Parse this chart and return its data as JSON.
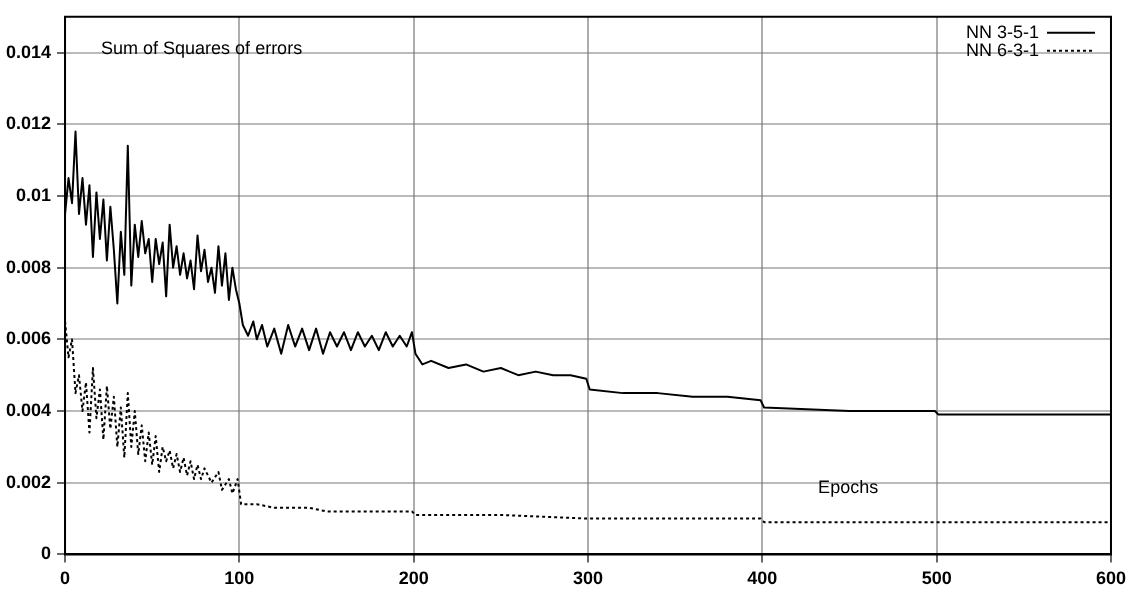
{
  "chart_data": {
    "type": "line",
    "xlabel": "Epochs",
    "ylabel": "Sum of Squares of errors",
    "xlim": [
      0,
      600
    ],
    "xticks": [
      0,
      100,
      200,
      300,
      400,
      500,
      600
    ],
    "ylim": [
      0,
      0.015
    ],
    "yticks": [
      0,
      0.002,
      0.004,
      0.006,
      0.008,
      0.01,
      0.012,
      0.014
    ],
    "grid": true,
    "legend": "top right",
    "marker": "none",
    "series": [
      {
        "name": "NN 3-5-1",
        "color": "#000000",
        "line_style": "solid",
        "x": [
          0,
          2,
          4,
          6,
          8,
          10,
          12,
          14,
          16,
          18,
          20,
          22,
          24,
          26,
          28,
          30,
          32,
          34,
          36,
          38,
          40,
          42,
          44,
          46,
          48,
          50,
          52,
          54,
          56,
          58,
          60,
          62,
          64,
          66,
          68,
          70,
          72,
          74,
          76,
          78,
          80,
          82,
          84,
          86,
          88,
          90,
          92,
          94,
          96,
          98,
          100,
          102,
          105,
          108,
          110,
          113,
          116,
          120,
          124,
          128,
          132,
          136,
          140,
          144,
          148,
          152,
          156,
          160,
          164,
          168,
          172,
          176,
          180,
          184,
          188,
          192,
          196,
          199,
          201,
          205,
          210,
          220,
          230,
          240,
          250,
          260,
          270,
          280,
          290,
          299,
          301,
          320,
          340,
          360,
          380,
          399,
          401,
          450,
          499,
          501,
          600
        ],
        "values": [
          0.0095,
          0.0105,
          0.0098,
          0.0118,
          0.0095,
          0.0105,
          0.0092,
          0.0103,
          0.0083,
          0.0101,
          0.0088,
          0.0099,
          0.0082,
          0.0097,
          0.0085,
          0.007,
          0.009,
          0.0078,
          0.0114,
          0.0075,
          0.0092,
          0.0083,
          0.0093,
          0.0084,
          0.0088,
          0.0076,
          0.0088,
          0.0081,
          0.0087,
          0.0072,
          0.0092,
          0.008,
          0.0086,
          0.0078,
          0.0084,
          0.0077,
          0.0082,
          0.0074,
          0.0089,
          0.0079,
          0.0085,
          0.0076,
          0.008,
          0.0073,
          0.0086,
          0.0075,
          0.0084,
          0.0071,
          0.008,
          0.0074,
          0.007,
          0.0064,
          0.0061,
          0.0065,
          0.006,
          0.0064,
          0.0058,
          0.0063,
          0.0056,
          0.0064,
          0.0058,
          0.0063,
          0.0057,
          0.0063,
          0.0056,
          0.0062,
          0.0058,
          0.0062,
          0.0057,
          0.0062,
          0.0058,
          0.0061,
          0.0057,
          0.0062,
          0.0058,
          0.0061,
          0.0058,
          0.0062,
          0.0056,
          0.0053,
          0.0054,
          0.0052,
          0.0053,
          0.0051,
          0.0052,
          0.005,
          0.0051,
          0.005,
          0.005,
          0.0049,
          0.0046,
          0.0045,
          0.0045,
          0.0044,
          0.0044,
          0.0043,
          0.0041,
          0.004,
          0.004,
          0.0039,
          0.0039
        ]
      },
      {
        "name": "NN 6-3-1",
        "color": "#000000",
        "line_style": "dotted",
        "x": [
          0,
          2,
          4,
          6,
          8,
          10,
          12,
          14,
          16,
          18,
          20,
          22,
          24,
          26,
          28,
          30,
          32,
          34,
          36,
          38,
          40,
          42,
          44,
          46,
          48,
          50,
          52,
          54,
          56,
          58,
          60,
          62,
          64,
          66,
          68,
          70,
          72,
          74,
          76,
          78,
          80,
          84,
          88,
          90,
          94,
          96,
          99,
          101,
          110,
          120,
          130,
          140,
          150,
          170,
          199,
          201,
          250,
          299,
          301,
          399,
          401,
          500,
          600
        ],
        "values": [
          0.0065,
          0.0055,
          0.006,
          0.0045,
          0.005,
          0.004,
          0.0048,
          0.0034,
          0.0052,
          0.0038,
          0.0046,
          0.0032,
          0.0047,
          0.0035,
          0.0044,
          0.003,
          0.0041,
          0.0027,
          0.0045,
          0.003,
          0.004,
          0.0028,
          0.0036,
          0.0026,
          0.0034,
          0.0025,
          0.0033,
          0.0023,
          0.003,
          0.0026,
          0.0029,
          0.0024,
          0.0028,
          0.0023,
          0.0027,
          0.0022,
          0.0026,
          0.0021,
          0.0025,
          0.0021,
          0.0024,
          0.002,
          0.0023,
          0.0018,
          0.0021,
          0.0017,
          0.0021,
          0.0014,
          0.0014,
          0.0013,
          0.0013,
          0.0013,
          0.0012,
          0.0012,
          0.0012,
          0.0011,
          0.0011,
          0.001,
          0.001,
          0.001,
          0.0009,
          0.0009,
          0.0009
        ]
      }
    ]
  }
}
